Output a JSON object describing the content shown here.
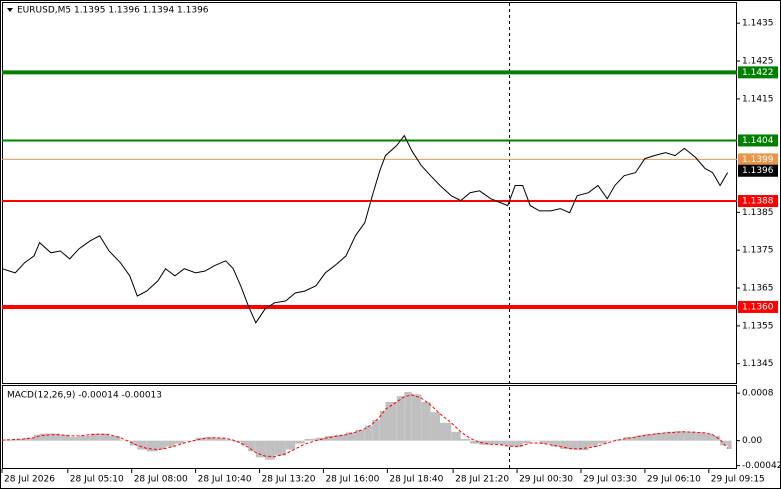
{
  "chart_data": [
    {
      "type": "line",
      "title": "EURUSD,M5  1.1395 1.1396 1.1394 1.1396",
      "x": [
        0,
        7,
        12,
        17,
        20,
        26,
        31,
        36,
        41,
        47,
        52,
        57,
        63,
        68,
        72,
        77,
        83,
        87,
        92,
        97,
        103,
        108,
        113,
        119,
        123,
        127,
        131,
        135,
        140,
        145,
        151,
        156,
        161,
        167,
        172,
        177,
        183,
        188,
        193,
        197,
        201,
        204,
        210,
        214,
        218,
        223,
        228,
        233,
        239,
        244,
        249,
        254,
        260,
        265,
        269,
        273,
        277,
        281,
        286,
        292,
        297,
        302,
        306,
        312,
        317,
        322,
        326,
        331,
        337,
        342,
        347,
        353,
        358,
        363,
        369,
        374,
        378,
        382,
        386
      ],
      "series": [
        {
          "color": "#000000",
          "values": [
            1.13701,
            1.1369,
            1.13717,
            1.13735,
            1.1377,
            1.13743,
            1.13748,
            1.13727,
            1.13754,
            1.13775,
            1.13788,
            1.13748,
            1.13717,
            1.13682,
            1.13629,
            1.13642,
            1.13669,
            1.13701,
            1.13682,
            1.13701,
            1.1369,
            1.13695,
            1.13709,
            1.13722,
            1.13701,
            1.13656,
            1.13603,
            1.13558,
            1.13595,
            1.13611,
            1.13616,
            1.13637,
            1.13642,
            1.13656,
            1.1369,
            1.13709,
            1.13735,
            1.13788,
            1.13823,
            1.13894,
            1.1396,
            1.14,
            1.14027,
            1.14053,
            1.14013,
            1.13974,
            1.13947,
            1.13921,
            1.13894,
            1.13881,
            1.13902,
            1.13907,
            1.13886,
            1.13876,
            1.13868,
            1.13921,
            1.13921,
            1.13868,
            1.13854,
            1.13854,
            1.1386,
            1.13849,
            1.13894,
            1.13902,
            1.13921,
            1.13886,
            1.13921,
            1.13947,
            1.13955,
            1.13992,
            1.14,
            1.14008,
            1.14,
            1.14019,
            1.13995,
            1.13966,
            1.13955,
            1.13921,
            1.13955
          ]
        }
      ],
      "levels": [
        {
          "value": 1.1422,
          "color": "#008000",
          "line_width": 4
        },
        {
          "value": 1.1404,
          "color": "#008000",
          "line_width": 2
        },
        {
          "value": 1.1399,
          "color": "#e8964a",
          "line_width": 1
        },
        {
          "value": 1.1388,
          "color": "#ff0000",
          "line_width": 2
        },
        {
          "value": 1.136,
          "label": "1.1360",
          "color": "#ff0000",
          "line_width": 4
        }
      ],
      "last_price": 1.1396,
      "ylim": [
        1.13399,
        1.14406
      ],
      "yticks": [
        1.1435,
        1.1425,
        1.1415,
        1.1385,
        1.1375,
        1.1365,
        1.1355,
        1.1345
      ],
      "xlim": [
        0,
        391
      ],
      "xticks": [
        {
          "value": 0,
          "label": "28 Jul 2026"
        },
        {
          "value": 35,
          "label": "28 Jul 05:10"
        },
        {
          "value": 69,
          "label": "28 Jul 08:00"
        },
        {
          "value": 103,
          "label": "28 Jul 10:40"
        },
        {
          "value": 137,
          "label": "28 Jul 13:20"
        },
        {
          "value": 171,
          "label": "28 Jul 16:00"
        },
        {
          "value": 205,
          "label": "28 Jul 18:40"
        },
        {
          "value": 240,
          "label": "28 Jul 21:20"
        },
        {
          "value": 274,
          "label": "29 Jul 00:30"
        },
        {
          "value": 308,
          "label": "29 Jul 03:30"
        },
        {
          "value": 342,
          "label": "29 Jul 06:10"
        },
        {
          "value": 376,
          "label": "29 Jul 09:15"
        }
      ],
      "vline_x": 270
    },
    {
      "type": "macd",
      "title": "MACD(12,26,9) -0.00014 -0.00013",
      "series": [
        {
          "type": "bar",
          "color": "#c0c0c0",
          "values": [
            2e-05,
            3e-05,
            5e-05,
            0.0001,
            0.00012,
            0.00012,
            0.0001,
            6e-05,
            8e-05,
            0.00012,
            0.00012,
            8e-05,
            0,
            -8e-05,
            -0.00015,
            -0.00018,
            -0.00015,
            -0.0001,
            -5e-05,
            0,
            5e-05,
            6e-05,
            5e-05,
            2e-05,
            -2e-05,
            -8e-05,
            -0.00018,
            -0.00028,
            -0.00032,
            -0.00025,
            -0.00015,
            -5e-05,
            3e-05,
            5e-05,
            8e-05,
            0.0001,
            0.00014,
            0.00018,
            0.00025,
            0.00035,
            0.0005,
            0.00065,
            0.00075,
            0.00082,
            0.00078,
            0.00065,
            0.00048,
            0.0003,
            0.00015,
            3e-05,
            -5e-05,
            -7e-05,
            -6e-05,
            -8e-05,
            -0.0001,
            -0.00011,
            -4e-05,
            0,
            -5e-05,
            -0.0001,
            -0.00014,
            -0.00015,
            -0.00016,
            -0.0001,
            -5e-05,
            0,
            2e-05,
            6e-05,
            9e-05,
            0.00011,
            0.00013,
            0.00015,
            0.00016,
            0.00015,
            0.00014,
            0.00012,
            8e-05,
            -8e-05,
            -0.00014
          ]
        },
        {
          "type": "line",
          "color": "#ff0000",
          "values": [
            1e-05,
            2e-05,
            3e-05,
            5e-05,
            8e-05,
            0.0001,
            0.0001,
            8e-05,
            8e-05,
            0.0001,
            0.00011,
            0.0001,
            5e-05,
            -2e-05,
            -8e-05,
            -0.00013,
            -0.00015,
            -0.00013,
            -9e-05,
            -4e-05,
            1e-05,
            4e-05,
            5e-05,
            4e-05,
            1e-05,
            -4e-05,
            -0.00011,
            -0.0002,
            -0.00026,
            -0.00027,
            -0.00022,
            -0.00014,
            -6e-05,
            0,
            4e-05,
            7e-05,
            0.0001,
            0.00014,
            0.0002,
            0.00028,
            0.0004,
            0.00053,
            0.00065,
            0.00074,
            0.00077,
            0.00072,
            0.0006,
            0.00045,
            0.0003,
            0.00015,
            4e-05,
            -3e-05,
            -6e-05,
            -7e-05,
            -9e-05,
            -0.0001,
            -8e-05,
            -4e-05,
            -4e-05,
            -7e-05,
            -0.0001,
            -0.00013,
            -0.00014,
            -0.00012,
            -9e-05,
            -4e-05,
            0,
            3e-05,
            6e-05,
            9e-05,
            0.00011,
            0.00013,
            0.00014,
            0.00015,
            0.00014,
            0.00013,
            0.0001,
            2e-05,
            -0.00013
          ]
        }
      ],
      "ylim": [
        -0.00046,
        0.00092
      ],
      "yticks": [
        0.0008,
        {
          "value": 0,
          "label": "0.00"
        },
        -0.00042
      ]
    }
  ]
}
